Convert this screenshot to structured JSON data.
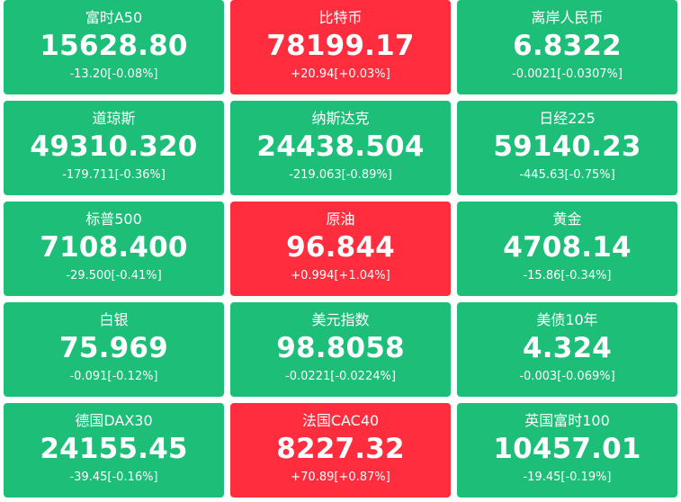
{
  "colors": {
    "up": "#ff2d3d",
    "down": "#1dbe78",
    "text": "#ffffff"
  },
  "tiles": [
    {
      "name": "富时A50",
      "price": "15628.80",
      "change": "-13.20[-0.08%]",
      "trend": "down"
    },
    {
      "name": "比特币",
      "price": "78199.17",
      "change": "+20.94[+0.03%]",
      "trend": "up"
    },
    {
      "name": "离岸人民币",
      "price": "6.8322",
      "change": "-0.0021[-0.0307%]",
      "trend": "down"
    },
    {
      "name": "道琼斯",
      "price": "49310.320",
      "change": "-179.711[-0.36%]",
      "trend": "down"
    },
    {
      "name": "纳斯达克",
      "price": "24438.504",
      "change": "-219.063[-0.89%]",
      "trend": "down"
    },
    {
      "name": "日经225",
      "price": "59140.23",
      "change": "-445.63[-0.75%]",
      "trend": "down"
    },
    {
      "name": "标普500",
      "price": "7108.400",
      "change": "-29.500[-0.41%]",
      "trend": "down"
    },
    {
      "name": "原油",
      "price": "96.844",
      "change": "+0.994[+1.04%]",
      "trend": "up"
    },
    {
      "name": "黄金",
      "price": "4708.14",
      "change": "-15.86[-0.34%]",
      "trend": "down"
    },
    {
      "name": "白银",
      "price": "75.969",
      "change": "-0.091[-0.12%]",
      "trend": "down"
    },
    {
      "name": "美元指数",
      "price": "98.8058",
      "change": "-0.0221[-0.0224%]",
      "trend": "down"
    },
    {
      "name": "美债10年",
      "price": "4.324",
      "change": "-0.003[-0.069%]",
      "trend": "down"
    },
    {
      "name": "德国DAX30",
      "price": "24155.45",
      "change": "-39.45[-0.16%]",
      "trend": "down"
    },
    {
      "name": "法国CAC40",
      "price": "8227.32",
      "change": "+70.89[+0.87%]",
      "trend": "up"
    },
    {
      "name": "英国富时100",
      "price": "10457.01",
      "change": "-19.45[-0.19%]",
      "trend": "down"
    }
  ]
}
